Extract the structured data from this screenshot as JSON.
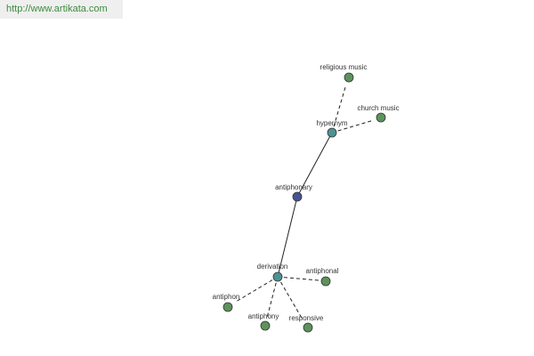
{
  "header": {
    "url": "http://www.artikata.com"
  },
  "nodes": [
    {
      "label": "religious music"
    },
    {
      "label": "church music"
    },
    {
      "label": "hypernym"
    },
    {
      "label": "antiphonary"
    },
    {
      "label": "derivation"
    },
    {
      "label": "antiphonal"
    },
    {
      "label": "antiphon"
    },
    {
      "label": "antiphony"
    },
    {
      "label": "responsive"
    }
  ]
}
